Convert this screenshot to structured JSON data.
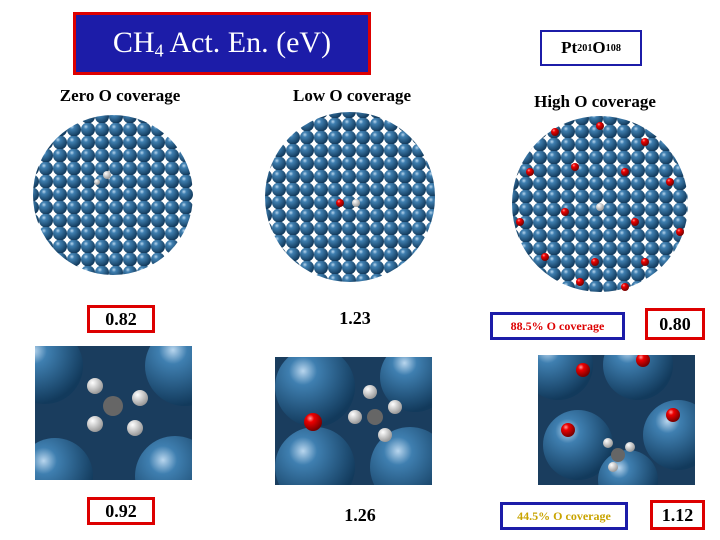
{
  "title": {
    "parts": [
      "CH",
      "4",
      " Act. En. (eV)"
    ]
  },
  "formula": {
    "parts": [
      "Pt",
      "201",
      "O",
      "108"
    ]
  },
  "columns": [
    {
      "label": "Zero O coverage",
      "top_value": "0.82",
      "bottom_value": "0.92"
    },
    {
      "label": "Low O coverage",
      "top_value": "1.23",
      "bottom_value": "1.26"
    },
    {
      "label": "High O coverage",
      "top_caption": "88.5% O coverage",
      "top_value": "0.80",
      "bottom_caption": "44.5% O coverage",
      "bottom_value": "1.12"
    }
  ]
}
